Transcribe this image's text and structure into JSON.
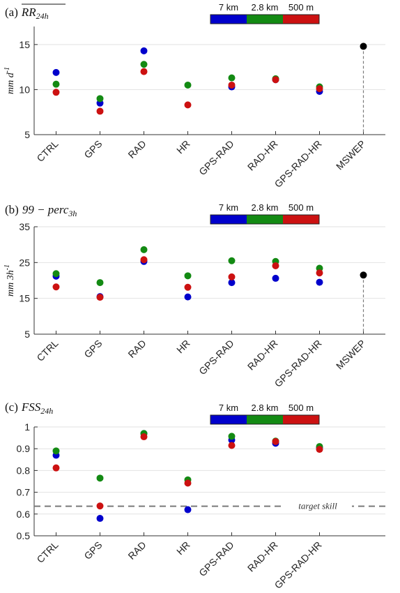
{
  "colors": {
    "blue": "#0000cc",
    "green": "#138a13",
    "red": "#cc1111",
    "black": "#000000",
    "grid": "#e2e2e2",
    "axis": "#333333",
    "dashed": "#7a7a7a"
  },
  "chart_data": [
    {
      "type": "scatter",
      "title_prefix": "(a)",
      "title_main": "RR",
      "title_sub": "24h",
      "title_overline": true,
      "ylabel": "mm d",
      "ylabel_sup": "-1",
      "ylim": [
        5,
        17
      ],
      "yticks": [
        "5",
        "10",
        "15"
      ],
      "ytick_values": [
        5,
        10,
        15
      ],
      "grid": true,
      "legend": {
        "position": "top-right",
        "labels": [
          "7 km",
          "2.8 km",
          "500 m"
        ]
      },
      "categories": [
        "CTRL",
        "GPS",
        "RAD",
        "HR",
        "GPS-RAD",
        "RAD-HR",
        "GPS-RAD-HR",
        "MSWEP"
      ],
      "series": [
        {
          "name": "7 km",
          "color": "blue",
          "values": [
            11.9,
            8.5,
            14.3,
            null,
            10.3,
            11.1,
            9.8,
            null
          ]
        },
        {
          "name": "2.8 km",
          "color": "green",
          "values": [
            10.6,
            9.0,
            12.8,
            10.5,
            11.3,
            11.2,
            10.3,
            null
          ]
        },
        {
          "name": "500 m",
          "color": "red",
          "values": [
            9.7,
            7.6,
            12.0,
            8.3,
            10.5,
            11.1,
            10.1,
            null
          ]
        }
      ],
      "reference": {
        "category": "MSWEP",
        "value": 14.8,
        "color": "black",
        "dropline": true
      }
    },
    {
      "type": "scatter",
      "title_prefix": "(b)",
      "title_main": "99 − perc",
      "title_sub": "3h",
      "title_overline": false,
      "ylabel": "mm 3h",
      "ylabel_sup": "-1",
      "ylim": [
        5,
        35
      ],
      "yticks": [
        "5",
        "15",
        "25",
        "35"
      ],
      "ytick_values": [
        5,
        15,
        25,
        35
      ],
      "grid": true,
      "legend": {
        "position": "top-right",
        "labels": [
          "7 km",
          "2.8 km",
          "500 m"
        ]
      },
      "categories": [
        "CTRL",
        "GPS",
        "RAD",
        "HR",
        "GPS-RAD",
        "RAD-HR",
        "GPS-RAD-HR",
        "MSWEP"
      ],
      "series": [
        {
          "name": "7 km",
          "color": "blue",
          "values": [
            21.2,
            15.5,
            25.3,
            15.4,
            19.4,
            20.6,
            19.5,
            null
          ]
        },
        {
          "name": "2.8 km",
          "color": "green",
          "values": [
            21.9,
            19.4,
            28.6,
            21.3,
            25.5,
            25.3,
            23.4,
            null
          ]
        },
        {
          "name": "500 m",
          "color": "red",
          "values": [
            18.2,
            15.3,
            25.8,
            18.1,
            21.0,
            24.1,
            22.1,
            null
          ]
        }
      ],
      "reference": {
        "category": "MSWEP",
        "value": 21.5,
        "color": "black",
        "dropline": true
      }
    },
    {
      "type": "scatter",
      "title_prefix": "(c)",
      "title_main": "FSS",
      "title_sub": "24h",
      "title_overline": false,
      "ylabel": "",
      "ylabel_sup": "",
      "ylim": [
        0.5,
        1.0
      ],
      "yticks": [
        "0.5",
        "0.6",
        "0.7",
        "0.8",
        "0.9",
        "1"
      ],
      "ytick_values": [
        0.5,
        0.6,
        0.7,
        0.8,
        0.9,
        1.0
      ],
      "grid": true,
      "legend": {
        "position": "top-right",
        "labels": [
          "7 km",
          "2.8 km",
          "500 m"
        ]
      },
      "categories": [
        "CTRL",
        "GPS",
        "RAD",
        "HR",
        "GPS-RAD",
        "RAD-HR",
        "GPS-RAD-HR"
      ],
      "series": [
        {
          "name": "7 km",
          "color": "blue",
          "values": [
            0.87,
            0.58,
            0.97,
            0.62,
            0.94,
            0.925,
            0.905
          ]
        },
        {
          "name": "2.8 km",
          "color": "green",
          "values": [
            0.89,
            0.765,
            0.97,
            0.757,
            0.957,
            0.935,
            0.91
          ]
        },
        {
          "name": "500 m",
          "color": "red",
          "values": [
            0.812,
            0.637,
            0.955,
            0.742,
            0.915,
            0.933,
            0.897
          ]
        }
      ],
      "target_line": {
        "value": 0.636,
        "label": "target skill"
      }
    }
  ]
}
